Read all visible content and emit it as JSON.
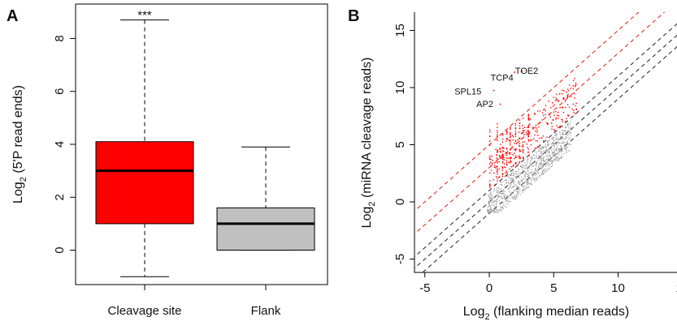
{
  "chart_data": [
    {
      "panel": "A",
      "type": "box",
      "title": "",
      "xlabel": "",
      "ylabel": "Log2 (5'P read ends)",
      "ylabel_parts": {
        "pre": "Log",
        "sub": "2",
        "post": " (5'P read ends)"
      },
      "ylim": [
        -1.3,
        9.3
      ],
      "yticks": [
        0,
        2,
        4,
        6,
        8
      ],
      "grid": false,
      "categories": [
        "Cleavage site",
        "Flank"
      ],
      "boxes": [
        {
          "name": "Cleavage site",
          "min": -1,
          "q1": 1,
          "median": 3,
          "q3": 4.1,
          "max": 8.7,
          "color": "#ff0000"
        },
        {
          "name": "Flank",
          "min": 0,
          "q1": 0,
          "median": 1,
          "q3": 1.6,
          "max": 3.9,
          "color": "#c0c0c0"
        }
      ],
      "annotations": [
        {
          "text": "***",
          "category": "Cleavage site",
          "y": 8.7
        }
      ]
    },
    {
      "panel": "B",
      "type": "scatter",
      "title": "",
      "xlabel": "Log2 (flanking median reads)",
      "xlabel_parts": {
        "pre": "Log",
        "sub": "2",
        "post": " (flanking median reads)"
      },
      "ylabel": "Log2 (miRNA cleavage reads)",
      "ylabel_parts": {
        "pre": "Log",
        "sub": "2",
        "post": " (miRNA cleavage reads)"
      },
      "xlim": [
        -6,
        16
      ],
      "ylim": [
        -5.8,
        15.8
      ],
      "xticks": [
        -5,
        0,
        5,
        10,
        15
      ],
      "yticks": [
        -5,
        0,
        5,
        10,
        15
      ],
      "grid": false,
      "series": [
        {
          "color": "#a0a0a0"
        },
        {
          "color": "#ff0000"
        }
      ],
      "reference_lines": [
        {
          "intercept": 5,
          "color": "#e03020",
          "style": "dashed"
        },
        {
          "intercept": 3,
          "color": "#e03020",
          "style": "dashed"
        },
        {
          "intercept": 1,
          "color": "#333333",
          "style": "dashed"
        },
        {
          "intercept": 0,
          "color": "#333333",
          "style": "dashed"
        },
        {
          "intercept": -1,
          "color": "#333333",
          "style": "dashed"
        }
      ],
      "labeled_points": [
        {
          "text": "TCP4",
          "x": 1.9,
          "y": 11.4,
          "label_x": 0.1,
          "label_y": 10.6
        },
        {
          "text": "TOE2",
          "x": 2.5,
          "y": 11.5,
          "label_x": 2.0,
          "label_y": 11.2
        },
        {
          "text": "SPL15",
          "x": 0.3,
          "y": 9.8,
          "label_x": -2.7,
          "label_y": 9.4
        },
        {
          "text": "AP2",
          "x": 0.8,
          "y": 8.6,
          "label_x": -1.0,
          "label_y": 8.3
        }
      ]
    }
  ]
}
